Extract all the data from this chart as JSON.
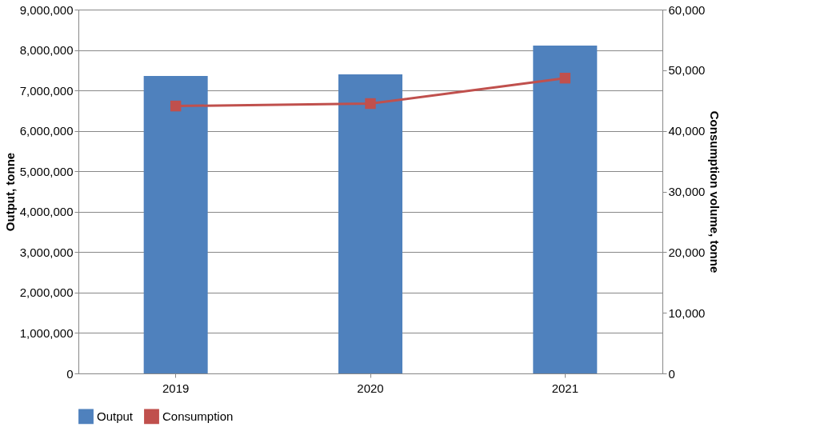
{
  "chart_data": {
    "type": "bar",
    "categories": [
      "2019",
      "2020",
      "2021"
    ],
    "ylabel": "Output, tonne",
    "y2label": "Consumption volume, tonne",
    "series": [
      {
        "name": "Output",
        "color": "#4f81bd",
        "values": [
          7360000,
          7400000,
          8110000
        ]
      },
      {
        "name": "Consumption",
        "type": "line",
        "axis": "y2",
        "color": "#c0504d",
        "marker": "square",
        "values": [
          44100,
          44500,
          48700
        ]
      }
    ],
    "ylim": [
      0,
      9000000
    ],
    "yticks": [
      0,
      {
        "value": 1000000,
        "label": "1,000,000"
      },
      {
        "value": 2000000,
        "label": "2,000,000"
      },
      {
        "value": 3000000,
        "label": "3,000,000"
      },
      {
        "value": 4000000,
        "label": "4,000,000"
      },
      {
        "value": 5000000,
        "label": "5,000,000"
      },
      {
        "value": 6000000,
        "label": "6,000,000"
      },
      {
        "value": 7000000,
        "label": "7,000,000"
      },
      {
        "value": 8000000,
        "label": "8,000,000"
      },
      {
        "value": 9000000,
        "label": "9,000,000"
      }
    ],
    "y2lim": [
      0,
      60000
    ],
    "y2ticks": [
      0,
      {
        "value": 10000,
        "label": "10,000"
      },
      {
        "value": 20000,
        "label": "20,000"
      },
      {
        "value": 30000,
        "label": "30,000"
      },
      {
        "value": 40000,
        "label": "40,000"
      },
      {
        "value": 50000,
        "label": "50,000"
      },
      {
        "value": 60000,
        "label": "60,000"
      }
    ],
    "grid": "y",
    "legend": "bottom"
  }
}
